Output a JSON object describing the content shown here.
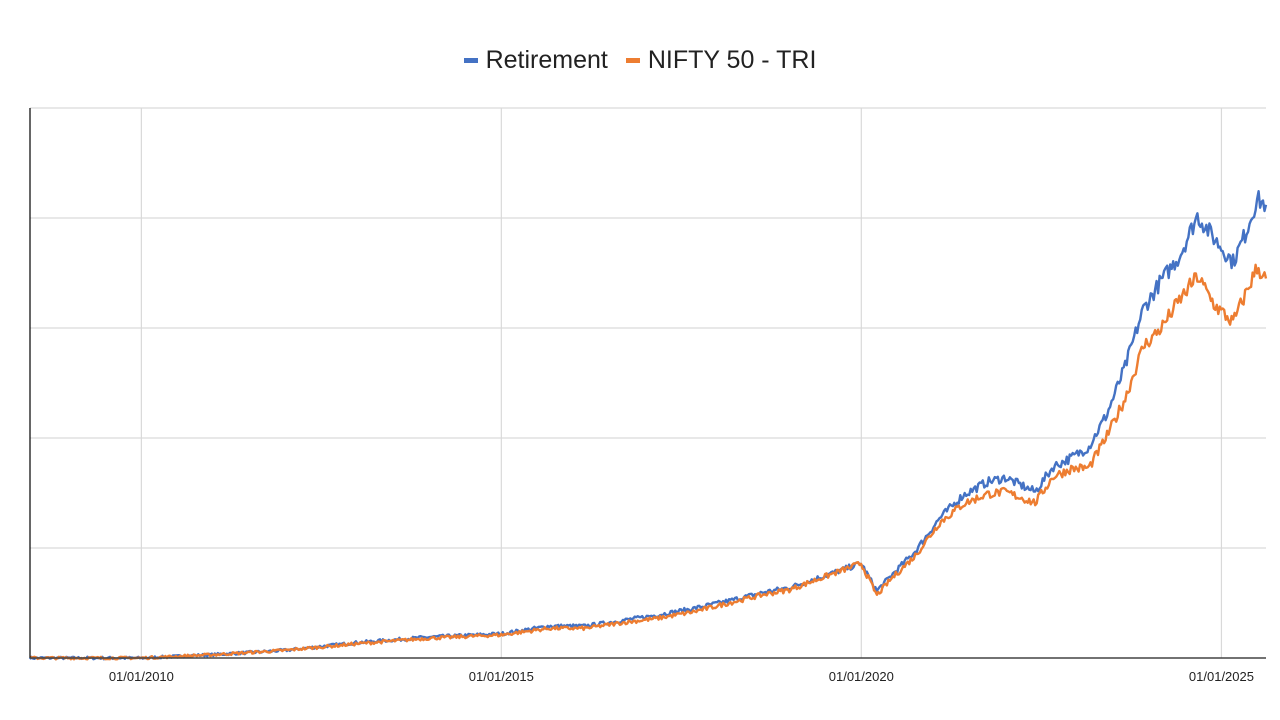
{
  "chart_data": {
    "type": "line",
    "title": "",
    "xlabel": "",
    "ylabel": "",
    "x_ticks": [
      "01/01/2010",
      "01/01/2015",
      "01/01/2020",
      "01/01/2025"
    ],
    "x_range": [
      "2008-06-15",
      "2025-08-15"
    ],
    "y_range": [
      0,
      5
    ],
    "y_grid_lines": [
      0,
      1,
      2,
      3,
      4,
      5
    ],
    "y_tick_labels_shown": false,
    "grid": true,
    "legend_position": "top-center",
    "series": [
      {
        "name": "Retirement",
        "color": "#4472C4",
        "points": [
          [
            "2008-06-15",
            0.0
          ],
          [
            "2009-01-01",
            0.0
          ],
          [
            "2010-01-01",
            0.0
          ],
          [
            "2011-01-01",
            0.03
          ],
          [
            "2012-01-01",
            0.07
          ],
          [
            "2013-01-01",
            0.14
          ],
          [
            "2014-01-01",
            0.19
          ],
          [
            "2015-01-01",
            0.22
          ],
          [
            "2015-09-01",
            0.29
          ],
          [
            "2016-03-01",
            0.29
          ],
          [
            "2016-09-01",
            0.34
          ],
          [
            "2017-03-01",
            0.39
          ],
          [
            "2017-09-01",
            0.45
          ],
          [
            "2018-03-01",
            0.52
          ],
          [
            "2018-09-01",
            0.6
          ],
          [
            "2019-01-01",
            0.64
          ],
          [
            "2019-06-01",
            0.73
          ],
          [
            "2019-12-31",
            0.86
          ],
          [
            "2020-03-20",
            0.61
          ],
          [
            "2020-06-01",
            0.75
          ],
          [
            "2020-10-01",
            0.97
          ],
          [
            "2021-02-01",
            1.27
          ],
          [
            "2021-06-01",
            1.48
          ],
          [
            "2021-10-01",
            1.6
          ],
          [
            "2022-01-01",
            1.64
          ],
          [
            "2022-06-01",
            1.51
          ],
          [
            "2022-09-01",
            1.74
          ],
          [
            "2022-12-01",
            1.82
          ],
          [
            "2023-03-01",
            1.92
          ],
          [
            "2023-06-01",
            2.22
          ],
          [
            "2023-09-01",
            2.65
          ],
          [
            "2023-12-01",
            3.17
          ],
          [
            "2024-03-01",
            3.43
          ],
          [
            "2024-06-01",
            3.65
          ],
          [
            "2024-09-01",
            4.02
          ],
          [
            "2024-12-01",
            3.8
          ],
          [
            "2025-03-01",
            3.6
          ],
          [
            "2025-05-01",
            3.85
          ],
          [
            "2025-07-01",
            4.17
          ],
          [
            "2025-08-15",
            4.12
          ]
        ]
      },
      {
        "name": "NIFTY 50 - TRI",
        "color": "#ED7D31",
        "points": [
          [
            "2008-06-15",
            0.0
          ],
          [
            "2009-01-01",
            0.0
          ],
          [
            "2010-01-01",
            0.0
          ],
          [
            "2011-01-01",
            0.03
          ],
          [
            "2012-01-01",
            0.07
          ],
          [
            "2013-01-01",
            0.13
          ],
          [
            "2014-01-01",
            0.18
          ],
          [
            "2015-01-01",
            0.21
          ],
          [
            "2015-09-01",
            0.27
          ],
          [
            "2016-03-01",
            0.27
          ],
          [
            "2016-09-01",
            0.32
          ],
          [
            "2017-03-01",
            0.36
          ],
          [
            "2017-09-01",
            0.42
          ],
          [
            "2018-03-01",
            0.5
          ],
          [
            "2018-09-01",
            0.58
          ],
          [
            "2019-01-01",
            0.62
          ],
          [
            "2019-06-01",
            0.72
          ],
          [
            "2019-12-31",
            0.86
          ],
          [
            "2020-03-20",
            0.57
          ],
          [
            "2020-06-01",
            0.72
          ],
          [
            "2020-10-01",
            0.93
          ],
          [
            "2021-02-01",
            1.23
          ],
          [
            "2021-06-01",
            1.4
          ],
          [
            "2021-10-01",
            1.49
          ],
          [
            "2022-01-01",
            1.51
          ],
          [
            "2022-06-01",
            1.41
          ],
          [
            "2022-09-01",
            1.65
          ],
          [
            "2022-12-01",
            1.72
          ],
          [
            "2023-03-01",
            1.73
          ],
          [
            "2023-06-01",
            2.02
          ],
          [
            "2023-09-01",
            2.36
          ],
          [
            "2023-12-01",
            2.83
          ],
          [
            "2024-03-01",
            3.0
          ],
          [
            "2024-06-01",
            3.25
          ],
          [
            "2024-09-01",
            3.47
          ],
          [
            "2024-12-01",
            3.2
          ],
          [
            "2025-03-01",
            3.05
          ],
          [
            "2025-05-01",
            3.3
          ],
          [
            "2025-07-01",
            3.55
          ],
          [
            "2025-08-15",
            3.45
          ]
        ]
      }
    ]
  }
}
